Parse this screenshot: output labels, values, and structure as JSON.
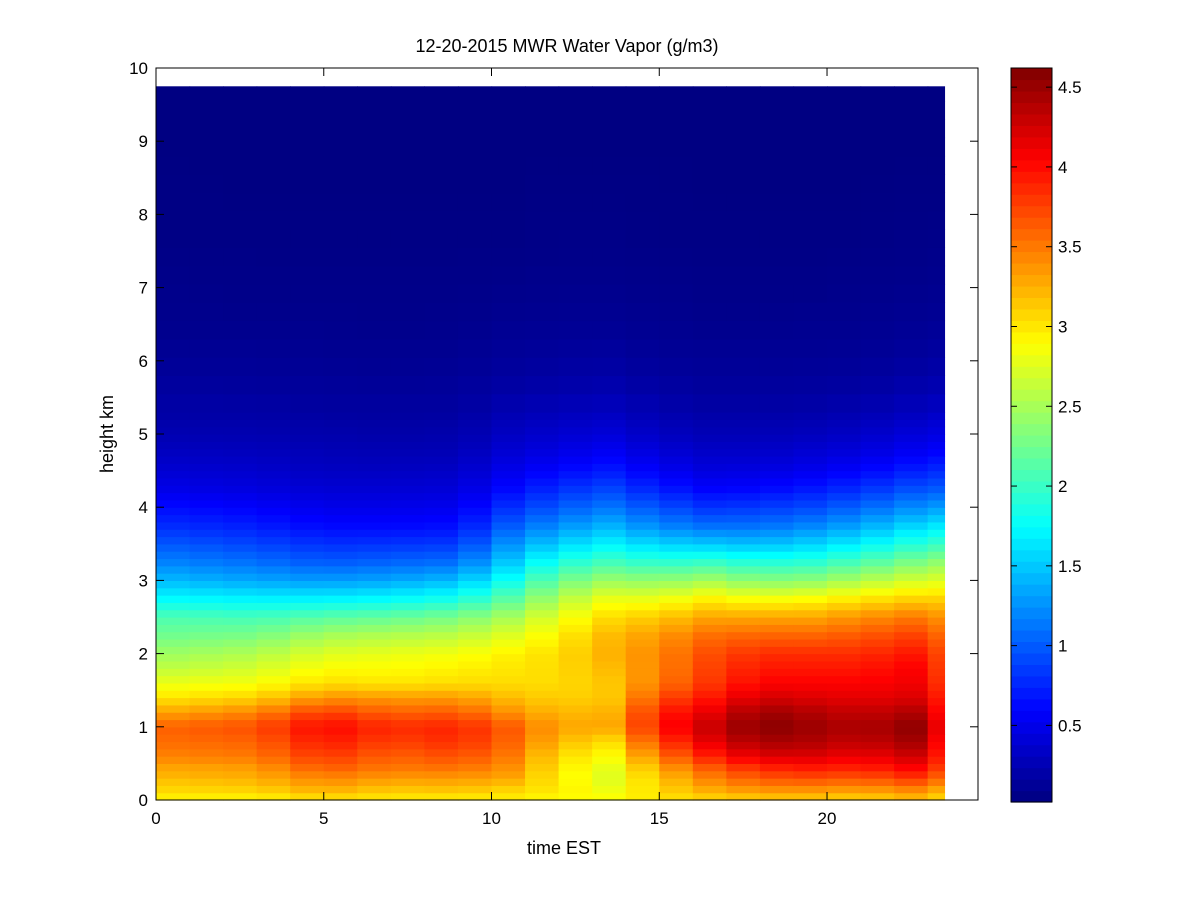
{
  "chart_data": {
    "type": "heatmap",
    "title": "12-20-2015 MWR Water Vapor (g/m3)",
    "xlabel": "time EST",
    "ylabel": "height km",
    "xlim": [
      0,
      24.5
    ],
    "ylim": [
      0,
      10
    ],
    "xticks": [
      0,
      5,
      10,
      15,
      20
    ],
    "xtick_labels": [
      "0",
      "5",
      "10",
      "15",
      "20"
    ],
    "yticks": [
      0,
      1,
      2,
      3,
      4,
      5,
      6,
      7,
      8,
      9,
      10
    ],
    "ytick_labels": [
      "0",
      "1",
      "2",
      "3",
      "4",
      "5",
      "6",
      "7",
      "8",
      "9",
      "10"
    ],
    "colormap": "jet",
    "clim": [
      0.02,
      4.62
    ],
    "colorbar_ticks": [
      0.5,
      1,
      1.5,
      2,
      2.5,
      3,
      3.5,
      4,
      4.5
    ],
    "colorbar_tick_labels": [
      "0.5",
      "1",
      "1.5",
      "2",
      "2.5",
      "3",
      "3.5",
      "4",
      "4.5"
    ],
    "grid": false,
    "data_extent": {
      "x": [
        0,
        23.5
      ],
      "y": [
        0,
        9.75
      ]
    },
    "time_columns_hours": [
      0.5,
      1.5,
      2.5,
      3.5,
      4.5,
      5.5,
      6.5,
      7.5,
      8.5,
      9.5,
      10.5,
      11.5,
      12.5,
      13.5,
      14.5,
      15.5,
      16.5,
      17.5,
      18.5,
      19.5,
      20.5,
      21.5,
      22.5,
      23.5
    ],
    "profile_heights_km": [
      0.0,
      0.1,
      0.2,
      0.3,
      0.45,
      0.6,
      0.8,
      1.0,
      1.2,
      1.4,
      1.6,
      1.8,
      2.0,
      2.25,
      2.5,
      2.75,
      3.0,
      3.25,
      3.5,
      3.75,
      4.0,
      4.25,
      4.5,
      4.75,
      5.0,
      5.25,
      5.5,
      5.75,
      6.0,
      6.25,
      6.5,
      7.0,
      7.5,
      8.0,
      8.5,
      9.0,
      9.75
    ],
    "profiles": [
      {
        "time": 0.0,
        "values": [
          2.9,
          3.05,
          3.1,
          3.2,
          3.3,
          3.45,
          3.55,
          3.6,
          3.3,
          3.0,
          2.8,
          2.6,
          2.45,
          2.25,
          2.1,
          1.75,
          1.45,
          1.2,
          1.0,
          0.8,
          0.65,
          0.5,
          0.4,
          0.32,
          0.25,
          0.2,
          0.18,
          0.15,
          0.12,
          0.1,
          0.08,
          0.07,
          0.05,
          0.04,
          0.04,
          0.03,
          0.03
        ]
      },
      {
        "time": 3.0,
        "values": [
          2.9,
          3.05,
          3.15,
          3.25,
          3.35,
          3.5,
          3.6,
          3.7,
          3.45,
          3.1,
          2.85,
          2.7,
          2.55,
          2.3,
          2.05,
          1.7,
          1.35,
          1.1,
          0.9,
          0.72,
          0.58,
          0.45,
          0.37,
          0.3,
          0.24,
          0.2,
          0.17,
          0.14,
          0.12,
          0.1,
          0.08,
          0.06,
          0.05,
          0.04,
          0.03,
          0.03,
          0.03
        ]
      },
      {
        "time": 5.0,
        "values": [
          3.0,
          3.2,
          3.35,
          3.45,
          3.65,
          3.8,
          3.95,
          4.05,
          3.8,
          3.4,
          3.05,
          2.9,
          2.75,
          2.5,
          2.15,
          1.7,
          1.3,
          1.0,
          0.8,
          0.62,
          0.5,
          0.4,
          0.32,
          0.27,
          0.22,
          0.18,
          0.15,
          0.13,
          0.11,
          0.09,
          0.08,
          0.06,
          0.05,
          0.04,
          0.03,
          0.03,
          0.03
        ]
      },
      {
        "time": 7.0,
        "values": [
          2.95,
          3.1,
          3.2,
          3.35,
          3.5,
          3.6,
          3.75,
          3.85,
          3.6,
          3.35,
          3.0,
          2.9,
          2.8,
          2.55,
          2.2,
          1.75,
          1.35,
          1.05,
          0.82,
          0.62,
          0.5,
          0.4,
          0.32,
          0.26,
          0.21,
          0.17,
          0.15,
          0.12,
          0.1,
          0.09,
          0.07,
          0.06,
          0.05,
          0.04,
          0.03,
          0.03,
          0.03
        ]
      },
      {
        "time": 9.0,
        "values": [
          2.95,
          3.1,
          3.25,
          3.35,
          3.55,
          3.7,
          3.85,
          3.9,
          3.65,
          3.35,
          3.05,
          2.95,
          2.85,
          2.6,
          2.3,
          1.85,
          1.45,
          1.1,
          0.85,
          0.65,
          0.52,
          0.42,
          0.34,
          0.27,
          0.22,
          0.18,
          0.15,
          0.13,
          0.11,
          0.09,
          0.08,
          0.06,
          0.05,
          0.04,
          0.03,
          0.03,
          0.03
        ]
      },
      {
        "time": 10.5,
        "values": [
          2.95,
          3.05,
          3.15,
          3.3,
          3.4,
          3.5,
          3.6,
          3.65,
          3.4,
          3.2,
          3.05,
          3.0,
          2.95,
          2.75,
          2.5,
          2.15,
          1.8,
          1.5,
          1.25,
          1.0,
          0.8,
          0.62,
          0.5,
          0.4,
          0.32,
          0.26,
          0.21,
          0.17,
          0.14,
          0.12,
          0.1,
          0.07,
          0.05,
          0.04,
          0.03,
          0.03,
          0.03
        ]
      },
      {
        "time": 12.0,
        "values": [
          2.9,
          2.95,
          3.0,
          2.95,
          3.0,
          3.05,
          3.2,
          3.3,
          3.2,
          3.1,
          3.05,
          3.05,
          3.05,
          2.95,
          2.8,
          2.55,
          2.25,
          1.9,
          1.55,
          1.25,
          1.0,
          0.8,
          0.62,
          0.48,
          0.38,
          0.3,
          0.24,
          0.19,
          0.16,
          0.13,
          0.11,
          0.08,
          0.06,
          0.05,
          0.04,
          0.03,
          0.03
        ]
      },
      {
        "time": 13.5,
        "values": [
          2.9,
          2.85,
          2.8,
          2.75,
          2.8,
          2.9,
          3.05,
          3.3,
          3.25,
          3.15,
          3.15,
          3.2,
          3.25,
          3.2,
          3.05,
          2.8,
          2.45,
          2.05,
          1.7,
          1.4,
          1.12,
          0.9,
          0.7,
          0.55,
          0.42,
          0.33,
          0.26,
          0.21,
          0.17,
          0.14,
          0.11,
          0.08,
          0.06,
          0.05,
          0.04,
          0.03,
          0.03
        ]
      },
      {
        "time": 15.0,
        "values": [
          3.0,
          3.05,
          3.1,
          3.15,
          3.3,
          3.5,
          3.75,
          3.95,
          3.9,
          3.7,
          3.5,
          3.45,
          3.45,
          3.35,
          3.15,
          2.8,
          2.4,
          1.95,
          1.55,
          1.2,
          0.95,
          0.72,
          0.55,
          0.42,
          0.32,
          0.25,
          0.2,
          0.16,
          0.13,
          0.11,
          0.09,
          0.07,
          0.05,
          0.04,
          0.04,
          0.03,
          0.03
        ]
      },
      {
        "time": 16.5,
        "values": [
          3.05,
          3.2,
          3.35,
          3.45,
          3.65,
          3.9,
          4.15,
          4.3,
          4.15,
          3.95,
          3.8,
          3.75,
          3.7,
          3.55,
          3.3,
          2.95,
          2.5,
          2.0,
          1.5,
          1.1,
          0.82,
          0.6,
          0.45,
          0.35,
          0.27,
          0.21,
          0.17,
          0.14,
          0.12,
          0.1,
          0.08,
          0.06,
          0.05,
          0.04,
          0.03,
          0.03,
          0.03
        ]
      },
      {
        "time": 18.0,
        "values": [
          3.1,
          3.3,
          3.5,
          3.65,
          3.9,
          4.2,
          4.45,
          4.6,
          4.5,
          4.25,
          4.05,
          3.95,
          3.85,
          3.6,
          3.3,
          2.85,
          2.35,
          1.9,
          1.45,
          1.1,
          0.85,
          0.62,
          0.46,
          0.35,
          0.27,
          0.21,
          0.17,
          0.14,
          0.12,
          0.1,
          0.08,
          0.06,
          0.05,
          0.04,
          0.03,
          0.03,
          0.03
        ]
      },
      {
        "time": 19.5,
        "values": [
          3.1,
          3.3,
          3.5,
          3.7,
          3.95,
          4.2,
          4.4,
          4.5,
          4.4,
          4.2,
          4.05,
          3.95,
          3.85,
          3.6,
          3.3,
          2.9,
          2.4,
          1.95,
          1.55,
          1.2,
          0.92,
          0.7,
          0.52,
          0.4,
          0.3,
          0.23,
          0.18,
          0.15,
          0.12,
          0.1,
          0.09,
          0.06,
          0.05,
          0.04,
          0.03,
          0.03,
          0.03
        ]
      },
      {
        "time": 21.0,
        "values": [
          3.05,
          3.25,
          3.45,
          3.65,
          3.9,
          4.1,
          4.3,
          4.4,
          4.3,
          4.15,
          4.05,
          3.95,
          3.85,
          3.65,
          3.4,
          3.0,
          2.55,
          2.1,
          1.7,
          1.35,
          1.05,
          0.8,
          0.6,
          0.45,
          0.34,
          0.26,
          0.2,
          0.16,
          0.13,
          0.11,
          0.09,
          0.07,
          0.05,
          0.04,
          0.03,
          0.03,
          0.03
        ]
      },
      {
        "time": 22.5,
        "values": [
          3.15,
          3.35,
          3.55,
          3.8,
          4.05,
          4.25,
          4.45,
          4.55,
          4.4,
          4.2,
          4.1,
          4.05,
          3.95,
          3.75,
          3.5,
          3.1,
          2.7,
          2.3,
          1.9,
          1.55,
          1.22,
          0.95,
          0.72,
          0.55,
          0.42,
          0.32,
          0.25,
          0.2,
          0.16,
          0.13,
          0.11,
          0.08,
          0.06,
          0.05,
          0.04,
          0.03,
          0.03
        ]
      },
      {
        "time": 23.5,
        "values": [
          3.05,
          3.2,
          3.4,
          3.6,
          3.8,
          3.95,
          4.05,
          4.15,
          4.05,
          3.95,
          3.85,
          3.8,
          3.75,
          3.6,
          3.4,
          3.1,
          2.75,
          2.4,
          2.0,
          1.65,
          1.3,
          1.0,
          0.78,
          0.6,
          0.46,
          0.36,
          0.28,
          0.22,
          0.18,
          0.15,
          0.12,
          0.09,
          0.07,
          0.05,
          0.04,
          0.03,
          0.03
        ]
      }
    ]
  }
}
